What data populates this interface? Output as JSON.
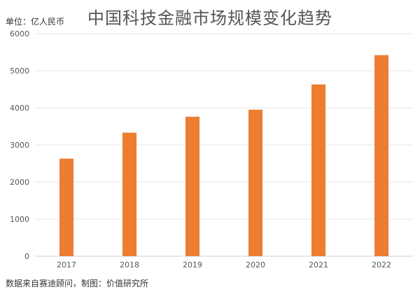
{
  "chart_data": {
    "type": "bar",
    "title": "中国科技金融市场规模变化趋势",
    "unit_label": "单位：亿人民币",
    "source": "数据来自赛迪顾问，制图：价值研究所",
    "categories": [
      "2017",
      "2018",
      "2019",
      "2020",
      "2021",
      "2022"
    ],
    "values": [
      2630,
      3330,
      3760,
      3950,
      4630,
      5420
    ],
    "ylim": [
      0,
      6000
    ],
    "yticks": [
      0,
      1000,
      2000,
      3000,
      4000,
      5000,
      6000
    ],
    "grid": true,
    "bar_color": "#ED7D31"
  }
}
